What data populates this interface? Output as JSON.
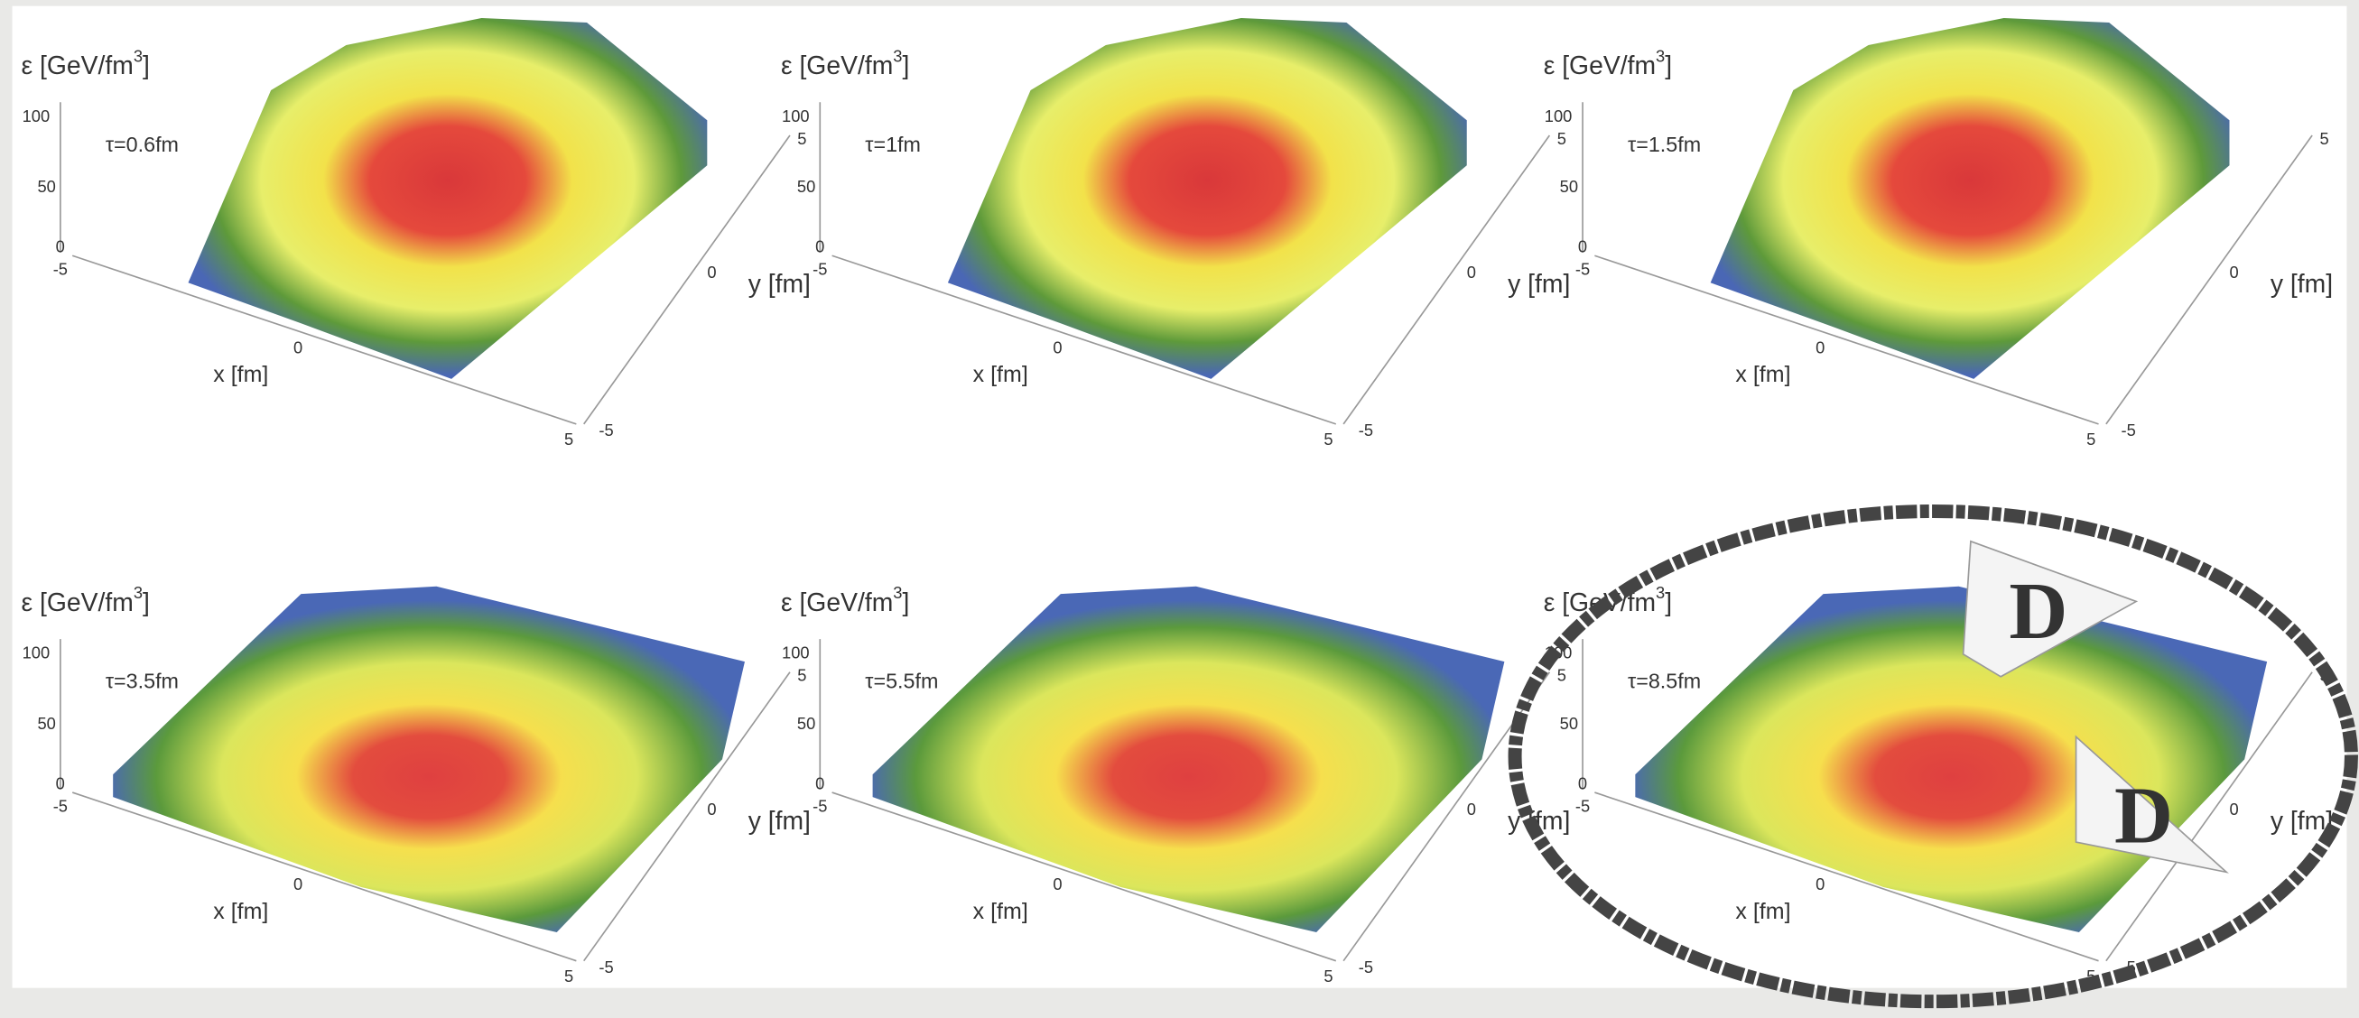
{
  "common": {
    "zlabel": {
      "text": "ε [GeV/fm",
      "sup": "3",
      "end": "]"
    },
    "zticks": [
      "100",
      "50",
      "0"
    ],
    "xticks": [
      "-5",
      "0",
      "5"
    ],
    "yticks": [
      "-5",
      "0",
      "5"
    ],
    "xlabel": "x [fm]",
    "ylabel": "y [fm]"
  },
  "panels": [
    {
      "tau": "τ=0.6fm"
    },
    {
      "tau": "τ=1fm"
    },
    {
      "tau": "τ=1.5fm"
    },
    {
      "tau": "τ=3.5fm"
    },
    {
      "tau": "τ=5.5fm"
    },
    {
      "tau": "τ=8.5fm"
    }
  ],
  "annotations": [
    "D",
    "D"
  ]
}
